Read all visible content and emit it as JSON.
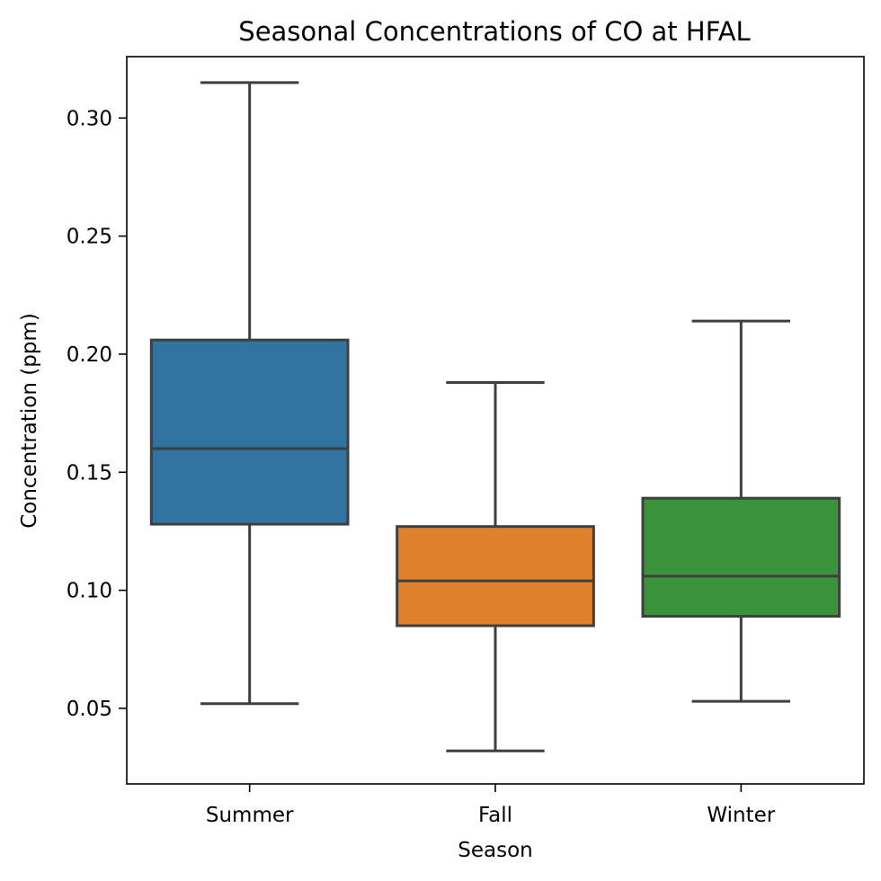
{
  "chart_data": {
    "type": "box",
    "title": "Seasonal Concentrations of CO at HFAL",
    "xlabel": "Season",
    "ylabel": "Concentration (ppm)",
    "ylim": [
      0.018,
      0.326
    ],
    "yticks": [
      0.05,
      0.1,
      0.15,
      0.2,
      0.25,
      0.3
    ],
    "ytick_labels": [
      "0.05",
      "0.10",
      "0.15",
      "0.20",
      "0.25",
      "0.30"
    ],
    "grid": false,
    "categories": [
      "Summer",
      "Fall",
      "Winter"
    ],
    "boxes": [
      {
        "category": "Summer",
        "whisker_low": 0.052,
        "q1": 0.128,
        "median": 0.16,
        "q3": 0.206,
        "whisker_high": 0.315,
        "color": "#3274a1"
      },
      {
        "category": "Fall",
        "whisker_low": 0.032,
        "q1": 0.085,
        "median": 0.104,
        "q3": 0.127,
        "whisker_high": 0.188,
        "color": "#e1812c"
      },
      {
        "category": "Winter",
        "whisker_low": 0.053,
        "q1": 0.089,
        "median": 0.106,
        "q3": 0.139,
        "whisker_high": 0.214,
        "color": "#3a923a"
      }
    ],
    "line_color": "#3f3f3f"
  }
}
